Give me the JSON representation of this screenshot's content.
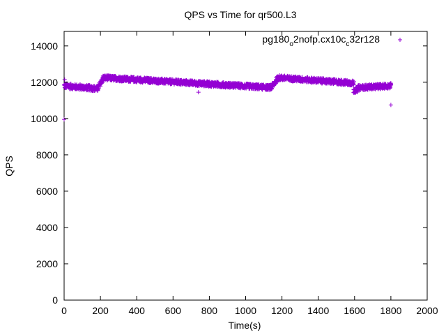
{
  "chart_data": {
    "type": "scatter",
    "title": "QPS vs Time for qr500.L3",
    "xlabel": "Time(s)",
    "ylabel": "QPS",
    "xlim": [
      0,
      2000
    ],
    "ylim": [
      0,
      14800
    ],
    "xticks": [
      0,
      200,
      400,
      600,
      800,
      1000,
      1200,
      1400,
      1600,
      1800,
      2000
    ],
    "yticks": [
      0,
      2000,
      4000,
      6000,
      8000,
      10000,
      12000,
      14000
    ],
    "grid": false,
    "legend_position": "top-right",
    "series": [
      {
        "name": "pg180_o2nofp.cx10c_c32r128",
        "legend_parts": [
          "pg180",
          "o",
          "2nofp.cx10c",
          "c",
          "32r128"
        ],
        "color": "#9400d3",
        "marker": "plus",
        "segments": [
          {
            "x_start": 0,
            "x_end": 185,
            "y_start": 11800,
            "y_end": 11650,
            "spread": 150
          },
          {
            "x_start": 185,
            "x_end": 215,
            "y_start": 11650,
            "y_end": 12200,
            "spread": 150
          },
          {
            "x_start": 215,
            "x_end": 1140,
            "y_start": 12250,
            "y_end": 11700,
            "spread": 140
          },
          {
            "x_start": 1140,
            "x_end": 1180,
            "y_start": 11700,
            "y_end": 12250,
            "spread": 150
          },
          {
            "x_start": 1180,
            "x_end": 1595,
            "y_start": 12250,
            "y_end": 11950,
            "spread": 140
          },
          {
            "x_start": 1595,
            "x_end": 1620,
            "y_start": 11550,
            "y_end": 11600,
            "spread": 150
          },
          {
            "x_start": 1620,
            "x_end": 1800,
            "y_start": 11700,
            "y_end": 11800,
            "spread": 140
          }
        ],
        "outliers": [
          {
            "x": 0,
            "y": 9950
          },
          {
            "x": 3,
            "y": 12150
          },
          {
            "x": 740,
            "y": 11450
          },
          {
            "x": 1800,
            "y": 10750
          },
          {
            "x": 1800,
            "y": 11950
          }
        ]
      }
    ]
  }
}
